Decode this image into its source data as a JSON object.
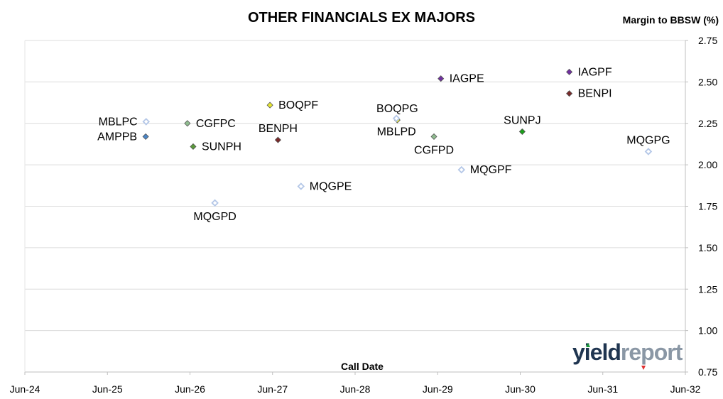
{
  "chart_data": {
    "type": "scatter",
    "title": "OTHER FINANCIALS EX MAJORS",
    "xlabel": "Call Date",
    "ylabel": "Margin to BBSW (%)",
    "x_ticks": [
      "Jun-24",
      "Jun-25",
      "Jun-26",
      "Jun-27",
      "Jun-28",
      "Jun-29",
      "Jun-30",
      "Jun-31",
      "Jun-32"
    ],
    "xlim": [
      "2024-06",
      "2032-06"
    ],
    "ylim": [
      0.75,
      2.75
    ],
    "y_ticks": [
      "0.75",
      "1.00",
      "1.25",
      "1.50",
      "1.75",
      "2.00",
      "2.25",
      "2.50",
      "2.75"
    ],
    "grid": "horizontal",
    "points": [
      {
        "label": "MBLPC",
        "x": "2025-11-20",
        "y": 2.26,
        "color": "#b4c7e7",
        "filled": false,
        "label_pos": "left"
      },
      {
        "label": "AMPPB",
        "x": "2025-11-18",
        "y": 2.17,
        "color": "#4a86c8",
        "filled": true,
        "label_pos": "left"
      },
      {
        "label": "CGFPC",
        "x": "2026-05-20",
        "y": 2.25,
        "color": "#8fbc8f",
        "filled": true,
        "label_pos": "right"
      },
      {
        "label": "SUNPH",
        "x": "2026-06-15",
        "y": 2.11,
        "color": "#5a9a3a",
        "filled": true,
        "label_pos": "right"
      },
      {
        "label": "MQGPD",
        "x": "2026-09-20",
        "y": 1.77,
        "color": "#b4c7e7",
        "filled": false,
        "label_pos": "below"
      },
      {
        "label": "BOQPF",
        "x": "2027-05-20",
        "y": 2.36,
        "color": "#e8e830",
        "filled": true,
        "label_pos": "right"
      },
      {
        "label": "BENPH",
        "x": "2027-06-25",
        "y": 2.15,
        "color": "#7a2a2a",
        "filled": true,
        "label_pos": "above"
      },
      {
        "label": "MQGPE",
        "x": "2027-10-05",
        "y": 1.87,
        "color": "#b4c7e7",
        "filled": false,
        "label_pos": "right"
      },
      {
        "label": "BOQPG",
        "x": "2028-12-05",
        "y": 2.27,
        "color": "#e8e830",
        "filled": true,
        "label_pos": "above"
      },
      {
        "label": "MBLPD",
        "x": "2028-12-01",
        "y": 2.28,
        "color": "#b4c7e7",
        "filled": false,
        "label_pos": "below"
      },
      {
        "label": "CGFPD",
        "x": "2029-05-15",
        "y": 2.17,
        "color": "#8fbc8f",
        "filled": true,
        "label_pos": "below"
      },
      {
        "label": "IAGPE",
        "x": "2029-06-15",
        "y": 2.52,
        "color": "#7030a0",
        "filled": true,
        "label_pos": "right"
      },
      {
        "label": "MQGPF",
        "x": "2029-09-15",
        "y": 1.97,
        "color": "#b4c7e7",
        "filled": false,
        "label_pos": "right"
      },
      {
        "label": "SUNPJ",
        "x": "2030-06-10",
        "y": 2.2,
        "color": "#1aa01a",
        "filled": true,
        "label_pos": "above"
      },
      {
        "label": "IAGPF",
        "x": "2031-01-05",
        "y": 2.56,
        "color": "#7030a0",
        "filled": true,
        "label_pos": "right"
      },
      {
        "label": "BENPI",
        "x": "2031-01-05",
        "y": 2.43,
        "color": "#7a2a2a",
        "filled": true,
        "label_pos": "right"
      },
      {
        "label": "MQGPG",
        "x": "2031-12-20",
        "y": 2.08,
        "color": "#b4c7e7",
        "filled": false,
        "label_pos": "above"
      }
    ]
  },
  "logo": {
    "part1": "yield",
    "part2": "report"
  }
}
